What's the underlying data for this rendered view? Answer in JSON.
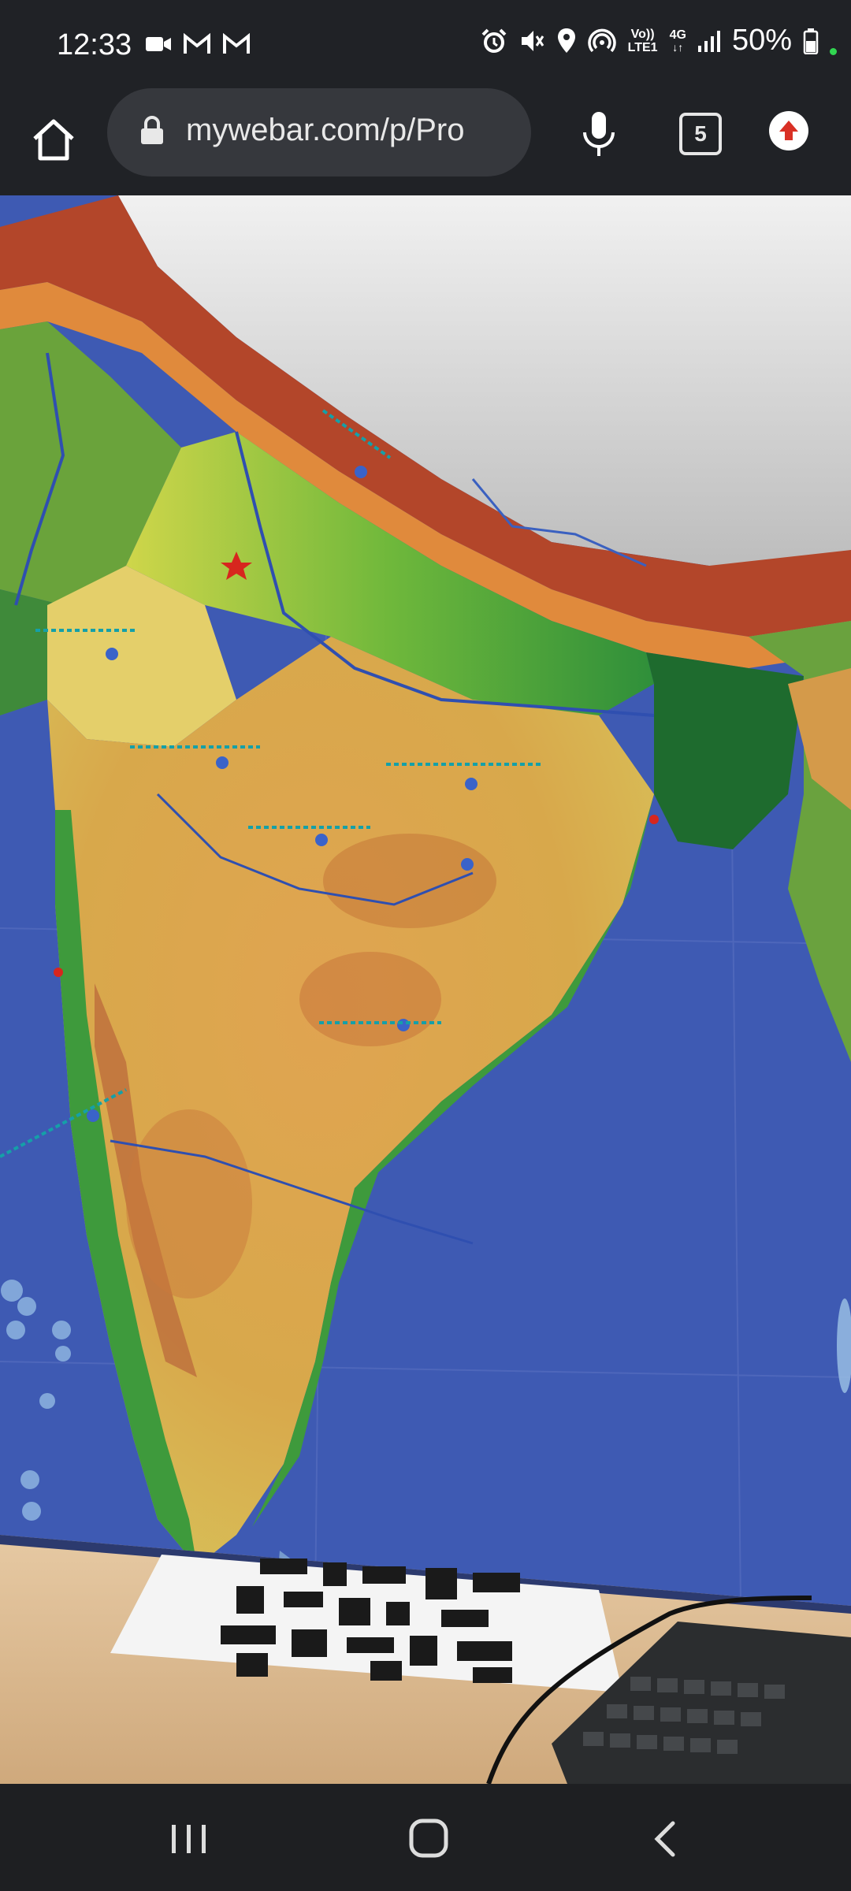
{
  "status_bar": {
    "time": "12:33",
    "notification_icons": [
      "video-call-icon",
      "gmail-icon",
      "gmail-icon"
    ],
    "system_icons": [
      "alarm-icon",
      "mute-icon",
      "location-icon",
      "hotspot-icon",
      "volte-icon",
      "4g-icon",
      "signal-icon",
      "battery-icon"
    ],
    "volte_label": "Vo)) LTE1",
    "network_label": "4G",
    "battery_percent": "50%"
  },
  "browser": {
    "url": "mywebar.com/p/Pro",
    "tab_count": "5"
  },
  "camera_view": {
    "description_tags": [
      "ar-map-of-india",
      "qr-code-marker",
      "keyboard"
    ]
  },
  "nav_bar": {
    "buttons": [
      "recents",
      "home",
      "back"
    ]
  },
  "colors": {
    "system_bar": "#202226",
    "omnibox": "#36383d",
    "ocean": "#3e5ab3",
    "update_red": "#d93025",
    "nav_bar": "#1e1f22"
  }
}
